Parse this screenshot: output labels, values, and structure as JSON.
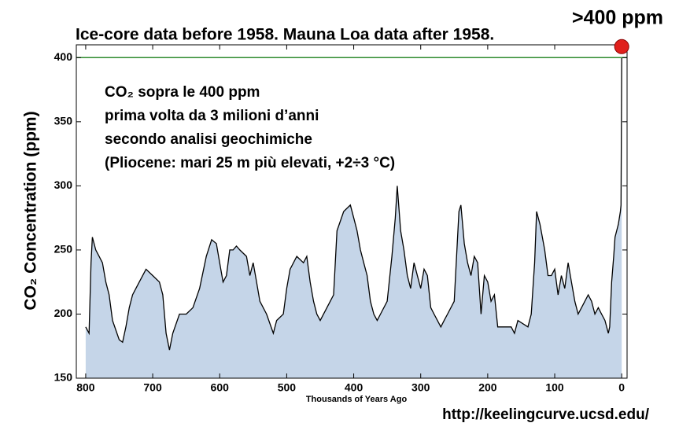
{
  "chart_data": {
    "type": "area",
    "title": "Ice-core data before 1958. Mauna Loa data after 1958.",
    "xlabel": "Thousands of Years Ago",
    "ylabel": "CO₂ Concentration (ppm)",
    "source": "http://keelingcurve.ucsd.edu/",
    "annotations": [
      {
        "text": "CO₂ sopra le 400 ppm",
        "color": "#000000"
      },
      {
        "text": "prima volta da 3 milioni d’anni",
        "color": "#e0201c"
      },
      {
        "text": "secondo analisi geochimiche",
        "color": "#000000"
      },
      {
        "text": "(Pliocene: mari 25 m più elevati, +2÷3 °C)",
        "color": "#000000"
      }
    ],
    "highlight": {
      "x": 0,
      "y": 400,
      "label": ">400 ppm",
      "color": "#e0201c"
    },
    "reference_line": {
      "y": 400,
      "color": "#2e8b2e"
    },
    "line_color": "#000000",
    "fill_color": "#c5d5e8",
    "xlim": [
      814,
      -8
    ],
    "ylim": [
      150,
      410
    ],
    "xticks": [
      800,
      700,
      600,
      500,
      400,
      300,
      200,
      100,
      0
    ],
    "yticks": [
      150,
      200,
      250,
      300,
      350,
      400
    ],
    "x": [
      800,
      795,
      792,
      790,
      785,
      780,
      775,
      770,
      765,
      760,
      750,
      745,
      740,
      735,
      730,
      720,
      710,
      700,
      690,
      685,
      680,
      675,
      670,
      660,
      650,
      640,
      630,
      620,
      612,
      605,
      600,
      595,
      590,
      585,
      580,
      575,
      570,
      560,
      555,
      550,
      545,
      540,
      530,
      520,
      515,
      505,
      500,
      495,
      485,
      475,
      470,
      465,
      460,
      455,
      450,
      440,
      430,
      425,
      415,
      405,
      400,
      395,
      390,
      385,
      380,
      375,
      370,
      365,
      360,
      350,
      343,
      338,
      335,
      330,
      325,
      320,
      315,
      310,
      300,
      295,
      290,
      285,
      280,
      270,
      265,
      260,
      250,
      243,
      240,
      235,
      230,
      225,
      220,
      215,
      210,
      205,
      200,
      195,
      190,
      185,
      175,
      165,
      160,
      155,
      140,
      135,
      130,
      127,
      122,
      115,
      110,
      105,
      100,
      95,
      90,
      85,
      80,
      75,
      70,
      65,
      60,
      50,
      45,
      40,
      35,
      30,
      25,
      20,
      18,
      15,
      12,
      10,
      5,
      2,
      1,
      0
    ],
    "values": [
      190,
      185,
      240,
      260,
      250,
      245,
      240,
      225,
      215,
      195,
      180,
      178,
      190,
      205,
      215,
      225,
      235,
      230,
      225,
      215,
      185,
      172,
      185,
      200,
      200,
      205,
      220,
      245,
      258,
      255,
      240,
      225,
      230,
      250,
      250,
      253,
      250,
      245,
      230,
      240,
      225,
      210,
      200,
      185,
      195,
      200,
      220,
      235,
      245,
      240,
      245,
      225,
      210,
      200,
      195,
      205,
      215,
      265,
      280,
      285,
      275,
      265,
      250,
      240,
      230,
      210,
      200,
      195,
      200,
      210,
      245,
      275,
      300,
      265,
      250,
      230,
      220,
      240,
      220,
      235,
      230,
      205,
      200,
      190,
      195,
      200,
      210,
      280,
      285,
      255,
      240,
      230,
      245,
      240,
      200,
      230,
      225,
      210,
      215,
      190,
      190,
      190,
      185,
      195,
      190,
      200,
      240,
      280,
      270,
      250,
      230,
      230,
      235,
      215,
      230,
      220,
      240,
      225,
      210,
      200,
      205,
      215,
      210,
      200,
      205,
      200,
      195,
      185,
      190,
      225,
      245,
      260,
      270,
      280,
      285,
      400
    ]
  }
}
